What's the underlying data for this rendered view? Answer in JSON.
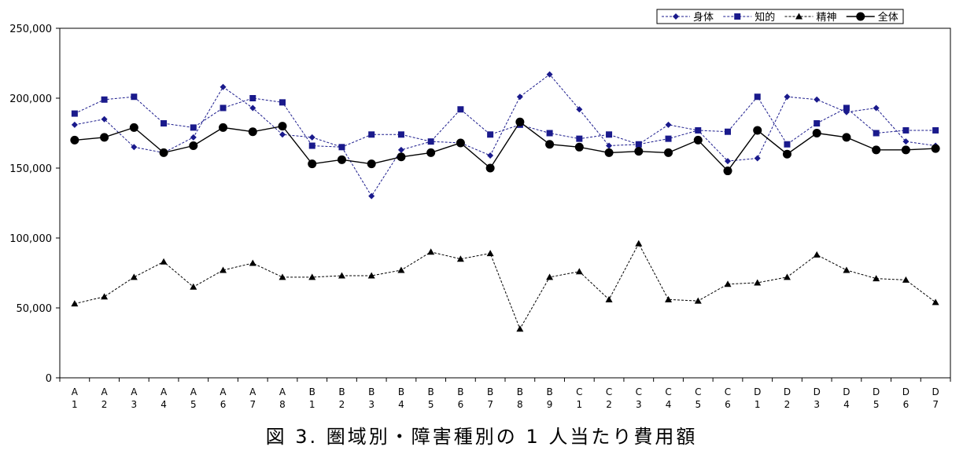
{
  "chart_data": {
    "type": "line",
    "categories": [
      [
        "A",
        "1"
      ],
      [
        "A",
        "2"
      ],
      [
        "A",
        "3"
      ],
      [
        "A",
        "4"
      ],
      [
        "A",
        "5"
      ],
      [
        "A",
        "6"
      ],
      [
        "A",
        "7"
      ],
      [
        "A",
        "8"
      ],
      [
        "B",
        "1"
      ],
      [
        "B",
        "2"
      ],
      [
        "B",
        "3"
      ],
      [
        "B",
        "4"
      ],
      [
        "B",
        "5"
      ],
      [
        "B",
        "6"
      ],
      [
        "B",
        "7"
      ],
      [
        "B",
        "8"
      ],
      [
        "B",
        "9"
      ],
      [
        "C",
        "1"
      ],
      [
        "C",
        "2"
      ],
      [
        "C",
        "3"
      ],
      [
        "C",
        "4"
      ],
      [
        "C",
        "5"
      ],
      [
        "C",
        "6"
      ],
      [
        "D",
        "1"
      ],
      [
        "D",
        "2"
      ],
      [
        "D",
        "3"
      ],
      [
        "D",
        "4"
      ],
      [
        "D",
        "5"
      ],
      [
        "D",
        "6"
      ],
      [
        "D",
        "7"
      ]
    ],
    "ylim": [
      0,
      250000
    ],
    "yticks": [
      0,
      50000,
      100000,
      150000,
      200000,
      250000
    ],
    "ytick_labels": [
      "0",
      "50,000",
      "100,000",
      "150,000",
      "200,000",
      "250,000"
    ],
    "grid": false,
    "legend_position": "top-right",
    "series": [
      {
        "name": "身体",
        "color": "#1a1a8c",
        "marker": "diamond",
        "line_style": "dashed",
        "values": [
          181000,
          185000,
          165000,
          161000,
          172000,
          208000,
          193000,
          174000,
          172000,
          165000,
          130000,
          163000,
          169000,
          168000,
          159000,
          201000,
          217000,
          192000,
          166000,
          167000,
          181000,
          177000,
          155000,
          157000,
          201000,
          199000,
          190000,
          193000,
          169000,
          166000
        ]
      },
      {
        "name": "知的",
        "color": "#1a1a8c",
        "marker": "square",
        "line_style": "dashed",
        "values": [
          189000,
          199000,
          201000,
          182000,
          179000,
          193000,
          200000,
          197000,
          166000,
          165000,
          174000,
          174000,
          169000,
          192000,
          174000,
          181000,
          175000,
          171000,
          174000,
          167000,
          171000,
          177000,
          176000,
          201000,
          167000,
          182000,
          193000,
          175000,
          177000,
          177000
        ]
      },
      {
        "name": "精神",
        "color": "#000000",
        "marker": "triangle",
        "line_style": "dashed",
        "values": [
          53000,
          58000,
          72000,
          83000,
          65000,
          77000,
          82000,
          72000,
          72000,
          73000,
          73000,
          77000,
          90000,
          85000,
          89000,
          35000,
          72000,
          76000,
          56000,
          96000,
          56000,
          55000,
          67000,
          68000,
          72000,
          88000,
          77000,
          71000,
          70000,
          54000
        ]
      },
      {
        "name": "全体",
        "color": "#000000",
        "marker": "circle",
        "line_style": "solid",
        "values": [
          170000,
          172000,
          179000,
          161000,
          166000,
          179000,
          176000,
          180000,
          153000,
          156000,
          153000,
          158000,
          161000,
          168000,
          150000,
          183000,
          167000,
          165000,
          161000,
          162000,
          161000,
          170000,
          148000,
          177000,
          160000,
          175000,
          172000,
          163000,
          163000,
          164000
        ]
      }
    ]
  },
  "caption": "図 3. 圏域別・障害種別の 1 人当たり費用額"
}
